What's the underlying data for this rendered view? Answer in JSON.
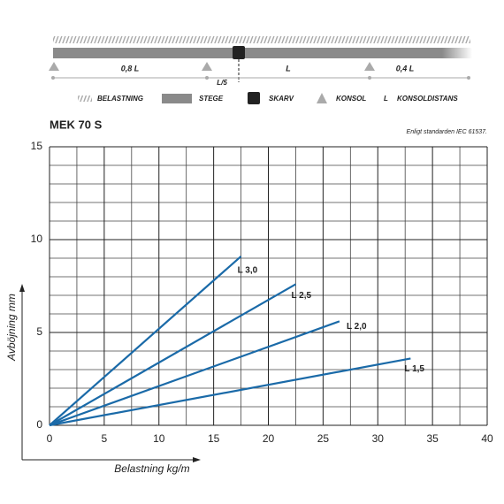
{
  "diagram": {
    "spans": [
      "0,8 L",
      "L",
      "0,4 L"
    ],
    "joint_offset": "L/5",
    "legend": [
      {
        "label": "BELASTNING"
      },
      {
        "label": "STEGE"
      },
      {
        "label": "SKARV"
      },
      {
        "label": "KONSOL"
      },
      {
        "symbol": "L",
        "label": "KONSOLDISTANS"
      }
    ]
  },
  "chart_data": {
    "type": "line",
    "title": "MEK 70 S",
    "subtitle": "Enligt standarden IEC 61537.",
    "xlabel": "Belastning kg/m",
    "ylabel": "Avböjning mm",
    "xlim": [
      0,
      40
    ],
    "ylim": [
      0,
      15
    ],
    "xticks": [
      0,
      5,
      10,
      15,
      20,
      25,
      30,
      35,
      40
    ],
    "yticks": [
      0,
      5,
      10,
      15
    ],
    "x_minor_grid": [
      2.5,
      7.5,
      12.5,
      17.5,
      22.5,
      27.5,
      32.5,
      37.5
    ],
    "y_minor_grid": [
      1,
      2,
      3,
      4,
      6,
      7,
      8,
      9,
      11,
      12,
      13,
      14
    ],
    "grid": true,
    "series": [
      {
        "name": "L 3,0",
        "color": "#1a6aa8",
        "x": [
          0,
          17.5
        ],
        "values": [
          0,
          9.1
        ]
      },
      {
        "name": "L 2,5",
        "color": "#1a6aa8",
        "x": [
          0,
          22.5
        ],
        "values": [
          0,
          7.6
        ]
      },
      {
        "name": "L 2,0",
        "color": "#1a6aa8",
        "x": [
          0,
          26.5
        ],
        "values": [
          0,
          5.6
        ]
      },
      {
        "name": "L 1,5",
        "color": "#1a6aa8",
        "x": [
          0,
          33
        ],
        "values": [
          0,
          3.6
        ]
      }
    ]
  }
}
